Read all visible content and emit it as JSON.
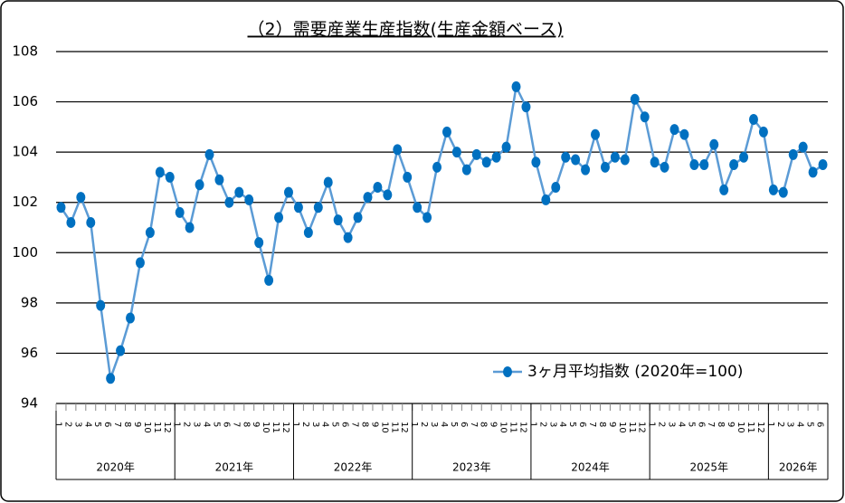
{
  "chart_data": {
    "type": "line",
    "title": "（2）需要産業生産指数(生産金額ベース)",
    "categories": [
      "1",
      "2",
      "3",
      "4",
      "5",
      "6",
      "7",
      "8",
      "9",
      "10",
      "11",
      "12",
      "1",
      "2",
      "3",
      "4",
      "5",
      "6",
      "7",
      "8",
      "9",
      "10",
      "11",
      "12",
      "1",
      "2",
      "3",
      "4",
      "5",
      "6",
      "7",
      "8",
      "9",
      "10",
      "11",
      "12",
      "1",
      "2",
      "3",
      "4",
      "5",
      "6",
      "7",
      "8",
      "9",
      "10",
      "11",
      "12",
      "1",
      "2",
      "3",
      "4",
      "5",
      "6",
      "7",
      "8",
      "9",
      "10",
      "11",
      "12",
      "1",
      "2",
      "3",
      "4",
      "5",
      "6",
      "7",
      "8",
      "9",
      "10",
      "11",
      "12",
      "1",
      "2",
      "3",
      "4",
      "5",
      "6"
    ],
    "year_labels": [
      "2020年",
      "2021年",
      "2022年",
      "2023年",
      "2024年",
      "2025年",
      "2026年"
    ],
    "series": [
      {
        "name": "3ヶ月平均指数 (2020年=100)",
        "color": "#5b9bd5",
        "marker_color": "#0070c0",
        "values": [
          101.8,
          101.2,
          102.2,
          101.2,
          97.9,
          95.0,
          96.1,
          97.4,
          99.6,
          100.8,
          103.2,
          103.0,
          101.6,
          101.0,
          102.7,
          103.9,
          102.9,
          102.0,
          102.4,
          102.1,
          100.4,
          98.9,
          101.4,
          102.4,
          101.8,
          100.8,
          101.8,
          102.8,
          101.3,
          100.6,
          101.4,
          102.2,
          102.6,
          102.3,
          104.1,
          103.0,
          101.8,
          101.4,
          103.4,
          104.8,
          104.0,
          103.3,
          103.9,
          103.6,
          103.8,
          104.2,
          106.6,
          105.8,
          103.6,
          102.1,
          102.6,
          103.8,
          103.7,
          103.3,
          104.7,
          103.4,
          103.8,
          103.7,
          106.1,
          105.4,
          103.6,
          103.4,
          104.9,
          104.7,
          103.5,
          103.5,
          104.3,
          102.5,
          103.5,
          103.8,
          105.3,
          104.8,
          102.5,
          102.4,
          103.9,
          104.2,
          103.2,
          103.5
        ]
      }
    ],
    "ylim": [
      94,
      108
    ],
    "yticks": [
      94,
      96,
      98,
      100,
      102,
      104,
      106,
      108
    ],
    "grid": true
  }
}
